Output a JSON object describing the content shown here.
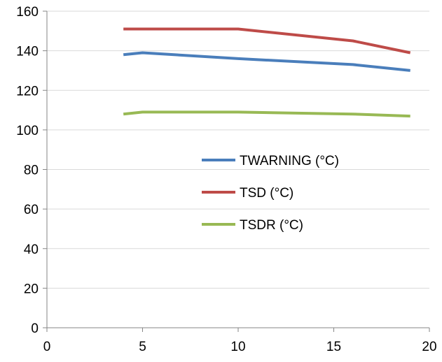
{
  "chart_data": {
    "type": "line",
    "title": "",
    "xlabel": "",
    "ylabel": "",
    "xlim": [
      0,
      20
    ],
    "ylim": [
      0,
      160
    ],
    "x_ticks": [
      0,
      5,
      10,
      15,
      20
    ],
    "y_ticks": [
      0,
      20,
      40,
      60,
      80,
      100,
      120,
      140,
      160
    ],
    "grid": {
      "horizontal": true,
      "vertical": false
    },
    "legend_position": "center",
    "series": [
      {
        "name": "TWARNING (°C)",
        "color": "#4a7ebb",
        "points": [
          [
            4,
            138
          ],
          [
            5,
            139
          ],
          [
            10,
            136
          ],
          [
            16,
            133
          ],
          [
            19,
            130
          ]
        ]
      },
      {
        "name": "TSD (°C)",
        "color": "#be4b48",
        "points": [
          [
            4,
            151
          ],
          [
            5,
            151
          ],
          [
            10,
            151
          ],
          [
            16,
            145
          ],
          [
            19,
            139
          ]
        ]
      },
      {
        "name": "TSDR (°C)",
        "color": "#98b954",
        "points": [
          [
            4,
            108
          ],
          [
            5,
            109
          ],
          [
            10,
            109
          ],
          [
            16,
            108
          ],
          [
            19,
            107
          ]
        ]
      }
    ]
  }
}
